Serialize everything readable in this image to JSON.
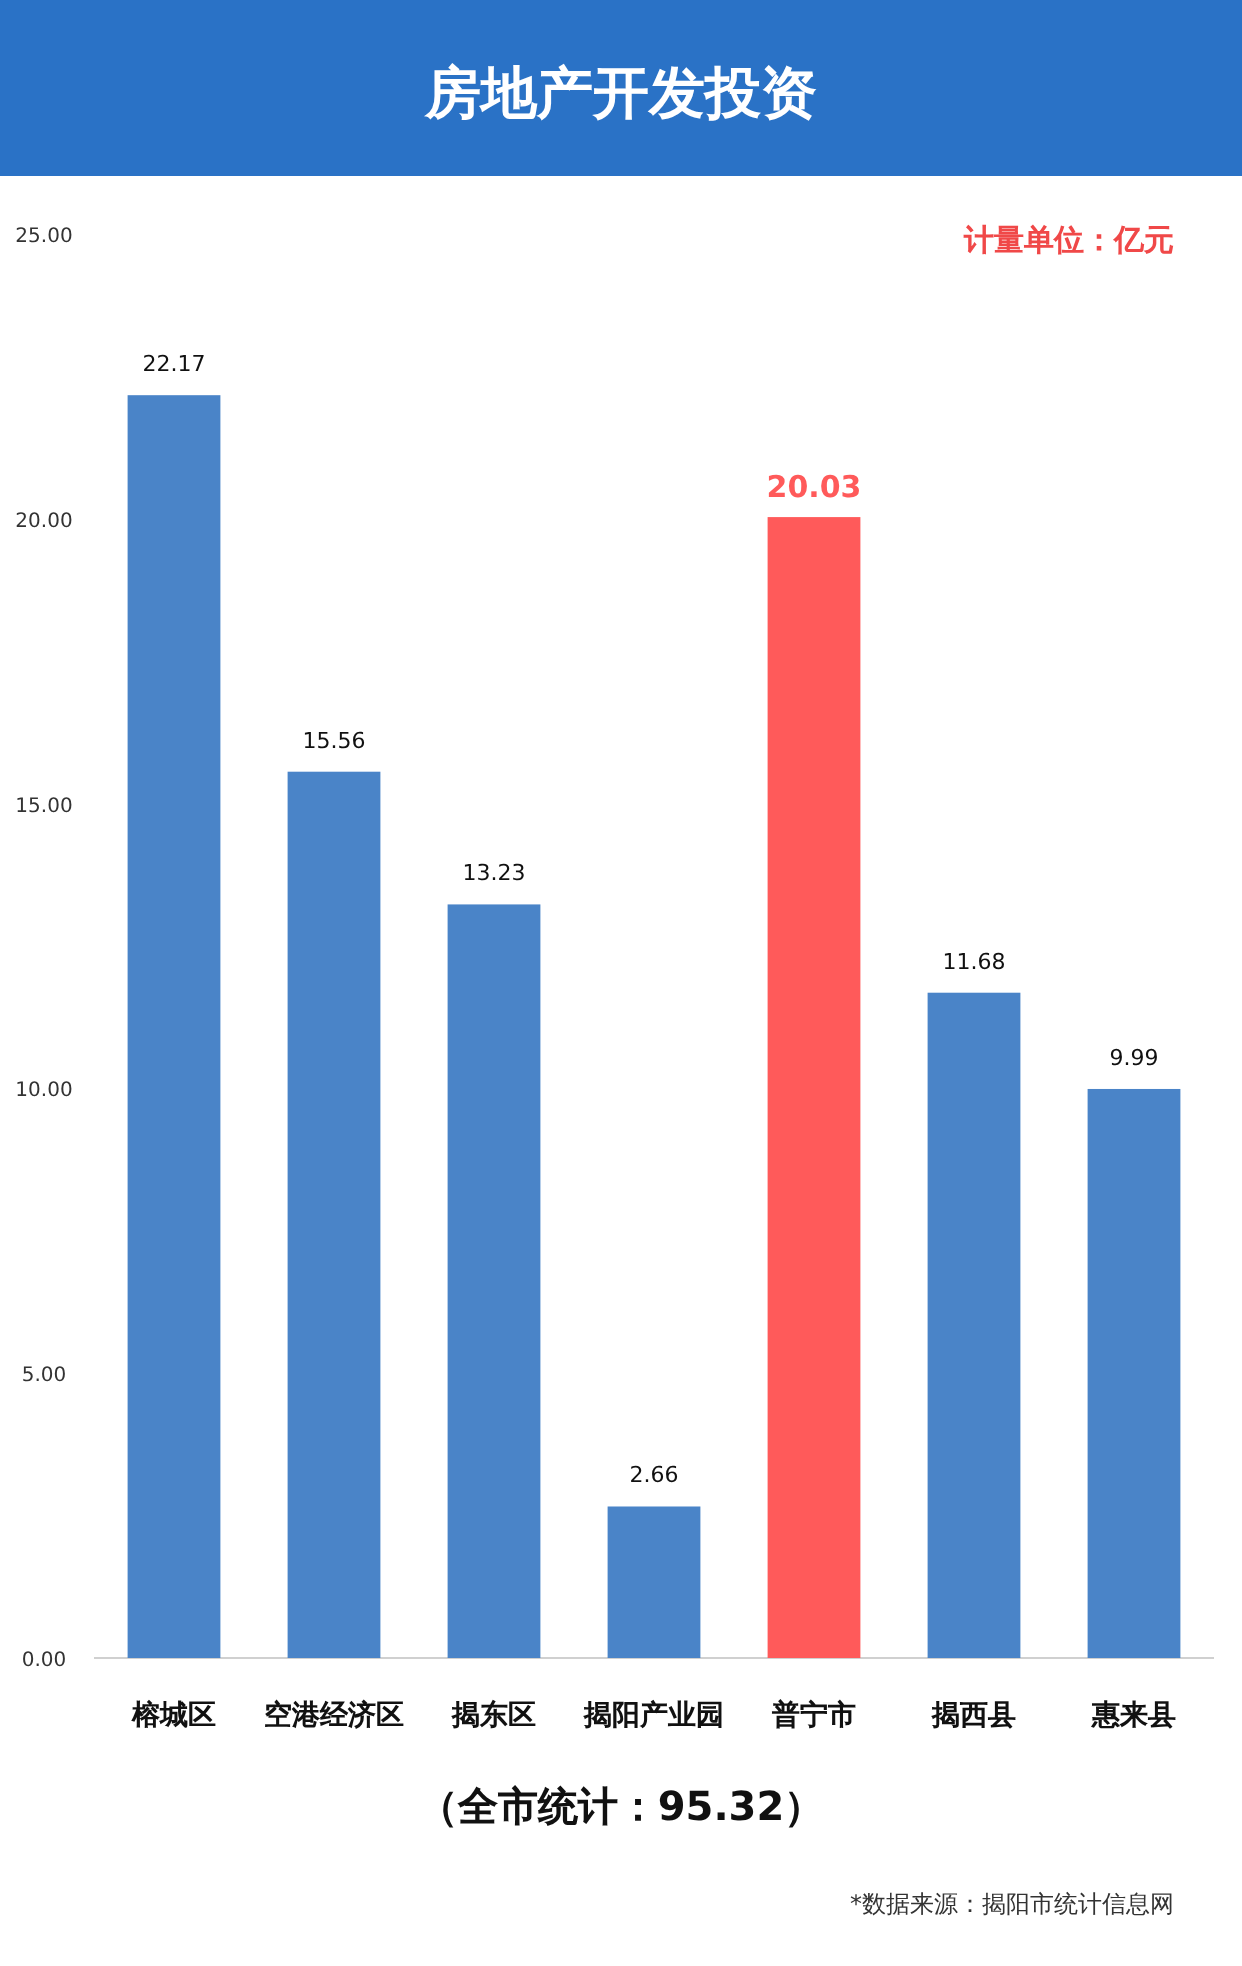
{
  "chart_data": {
    "type": "bar",
    "title": "房地产开发投资",
    "categories": [
      "榕城区",
      "空港经济区",
      "揭东区",
      "揭阳产业园",
      "普宁市",
      "揭西县",
      "惠来县"
    ],
    "values": [
      22.17,
      15.56,
      13.23,
      2.66,
      20.03,
      11.68,
      9.99
    ],
    "colors": [
      "#4a84c8",
      "#4a84c8",
      "#4a84c8",
      "#4a84c8",
      "#ff5a5a",
      "#4a84c8",
      "#4a84c8"
    ],
    "ylim": [
      0,
      25
    ],
    "yticks": [
      {
        "value": 0,
        "label": "0.00"
      },
      {
        "value": 5,
        "label": "5.00"
      },
      {
        "value": 10,
        "label": "10.00"
      },
      {
        "value": 15,
        "label": "15.00"
      },
      {
        "value": 20,
        "label": "20.00"
      },
      {
        "value": 25,
        "label": "25.00"
      }
    ],
    "data_labels": true,
    "annotations": [
      "计量单位：亿元",
      "（全市统计：95.32）",
      "*数据来源：揭阳市统计信息网"
    ]
  }
}
